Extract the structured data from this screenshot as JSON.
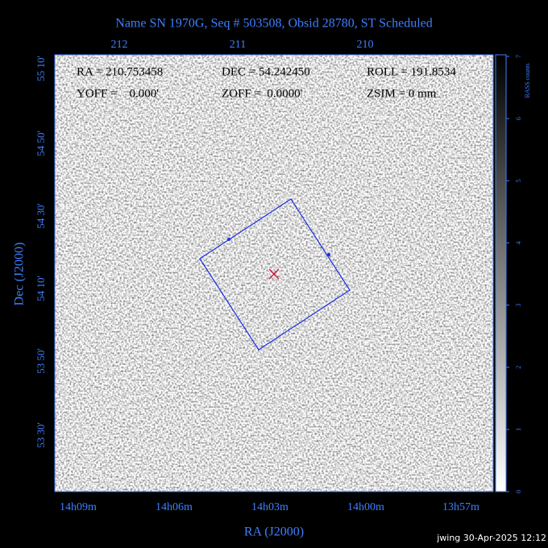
{
  "header": {
    "title": "Name SN 1970G, Seq # 503508, Obsid 28780, ST Scheduled"
  },
  "axes": {
    "x_label": "RA (J2000)",
    "y_label": "Dec (J2000)",
    "top_ticks": [
      "212",
      "211",
      "210"
    ],
    "bottom_ticks": [
      "14h09m",
      "14h06m",
      "14h03m",
      "14h00m",
      "13h57m"
    ],
    "left_ticks": [
      "55 10'",
      "54 50'",
      "54 30'",
      "54 10'",
      "53 50'",
      "53 30'"
    ]
  },
  "info": [
    [
      "RA = 210.753458",
      "DEC = 54.242450",
      "ROLL = 191.8534"
    ],
    [
      "YOFF =    0.000'",
      "ZOFF =  0.0000'",
      "ZSIM = 0 mm"
    ]
  ],
  "colorbar": {
    "label": "RASS counts",
    "ticks": [
      0,
      1,
      2,
      3,
      4,
      5,
      6,
      7
    ]
  },
  "footer": "jwing 30-Apr-2025 12:12"
}
